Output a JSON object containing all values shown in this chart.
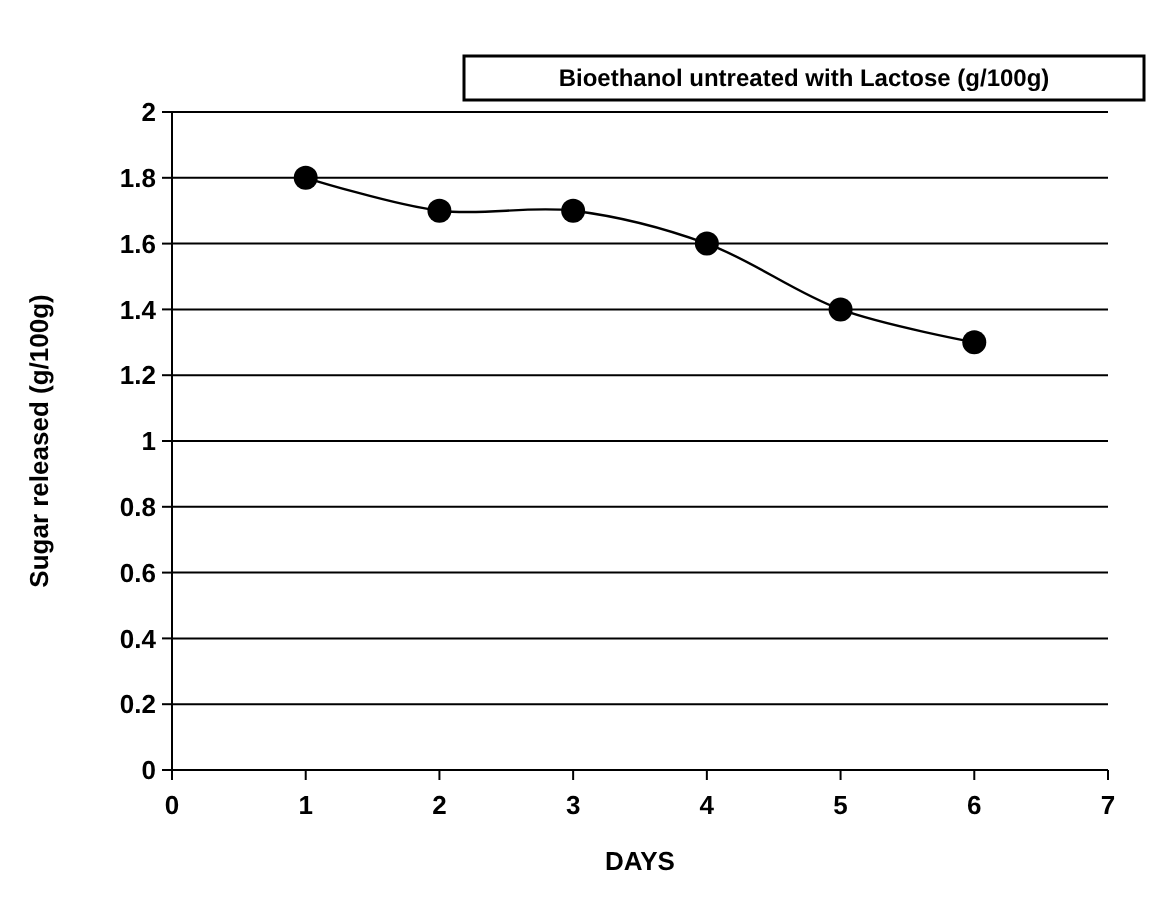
{
  "chart_data": {
    "type": "line",
    "xlabel": "DAYS",
    "ylabel": "Sugar released (g/100g)",
    "x": [
      1,
      2,
      3,
      4,
      5,
      6
    ],
    "series": [
      {
        "name": "Bioethanol untreated with Lactose (g/100g)",
        "color": "#000000",
        "values": [
          1.8,
          1.7,
          1.7,
          1.6,
          1.4,
          1.3
        ]
      }
    ],
    "xlim": [
      0,
      7
    ],
    "xticks": [
      0,
      1,
      2,
      3,
      4,
      5,
      6,
      7
    ],
    "ylim": [
      0,
      2
    ],
    "yticks": [
      0,
      0.2,
      0.4,
      0.6,
      0.8,
      1,
      1.2,
      1.4,
      1.6,
      1.8,
      2
    ],
    "grid": "y",
    "legend": "top right",
    "marker": "circle",
    "line_style": "solid"
  }
}
